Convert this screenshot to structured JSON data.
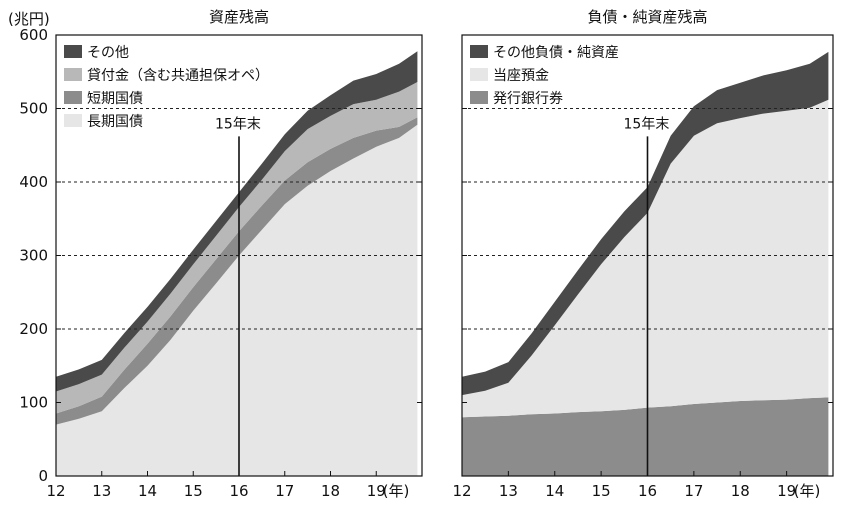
{
  "unit_label": "(兆円)",
  "x_unit_label": "(年)",
  "chart_data": [
    {
      "type": "area",
      "stacked": true,
      "title": "資産残高",
      "ylabel": "(兆円)",
      "xlabel": "(年)",
      "ylim": [
        0,
        600
      ],
      "yticks": [
        0,
        100,
        200,
        300,
        400,
        500,
        600
      ],
      "xlim": [
        12,
        20
      ],
      "xticks": [
        12,
        13,
        14,
        15,
        16,
        17,
        18,
        19
      ],
      "grid": "dashed horizontal at 200, 300, 400, 500",
      "legend_position": "top-left",
      "annotation": {
        "label": "15年末",
        "x": 16
      },
      "x": [
        12,
        12.5,
        13,
        13.5,
        14,
        14.5,
        15,
        15.5,
        16,
        16.5,
        17,
        17.5,
        18,
        18.5,
        19,
        19.5,
        19.9
      ],
      "series": [
        {
          "name": "長期国債",
          "color": "#e6e6e6",
          "values": [
            70,
            78,
            88,
            120,
            150,
            185,
            225,
            262,
            300,
            335,
            370,
            395,
            415,
            432,
            448,
            460,
            478
          ]
        },
        {
          "name": "短期国債",
          "color": "#8c8c8c",
          "values": [
            15,
            17,
            20,
            25,
            30,
            32,
            32,
            33,
            33,
            33,
            32,
            32,
            30,
            28,
            22,
            15,
            10
          ]
        },
        {
          "name": "貸付金（含む共通担保オペ）",
          "color": "#b8b8b8",
          "values": [
            30,
            30,
            30,
            30,
            30,
            31,
            31,
            32,
            33,
            35,
            40,
            45,
            45,
            46,
            42,
            48,
            48
          ]
        },
        {
          "name": "その他",
          "color": "#4a4a4a",
          "values": [
            20,
            20,
            20,
            20,
            20,
            20,
            20,
            20,
            20,
            22,
            23,
            25,
            28,
            32,
            35,
            38,
            42
          ]
        }
      ]
    },
    {
      "type": "area",
      "stacked": true,
      "title": "負債・純資産残高",
      "ylim": [
        0,
        600
      ],
      "yticks": [
        0,
        100,
        200,
        300,
        400,
        500,
        600
      ],
      "xlim": [
        12,
        20
      ],
      "xticks": [
        12,
        13,
        14,
        15,
        16,
        17,
        18,
        19
      ],
      "xlabel": "(年)",
      "grid": "dashed horizontal at 200, 300, 400, 500",
      "legend_position": "top-left",
      "annotation": {
        "label": "15年末",
        "x": 16
      },
      "x": [
        12,
        12.5,
        13,
        13.5,
        14,
        14.5,
        15,
        15.5,
        16,
        16.5,
        17,
        17.5,
        18,
        18.5,
        19,
        19.5,
        19.9
      ],
      "series": [
        {
          "name": "発行銀行券",
          "color": "#8c8c8c",
          "values": [
            80,
            81,
            82,
            84,
            85,
            87,
            88,
            90,
            93,
            95,
            98,
            100,
            102,
            103,
            104,
            106,
            107
          ]
        },
        {
          "name": "当座預金",
          "color": "#e6e6e6",
          "values": [
            30,
            35,
            45,
            80,
            120,
            160,
            200,
            235,
            265,
            330,
            365,
            380,
            385,
            390,
            393,
            395,
            405
          ]
        },
        {
          "name": "その他負債・純資産",
          "color": "#4a4a4a",
          "values": [
            25,
            26,
            28,
            30,
            32,
            33,
            34,
            35,
            35,
            38,
            40,
            45,
            48,
            52,
            55,
            60,
            65
          ]
        }
      ]
    }
  ]
}
